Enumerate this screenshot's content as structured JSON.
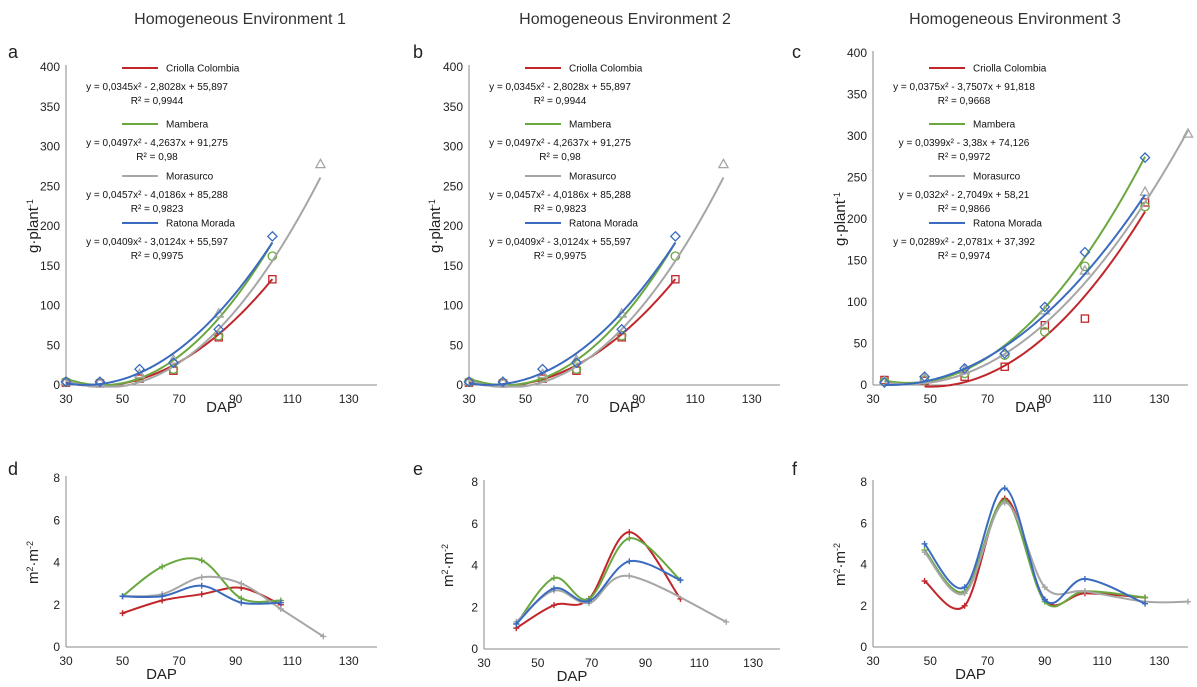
{
  "colors": {
    "Criolla Colombia": "#c0262a",
    "Mambera": "#6aa83f",
    "Morasurco": "#a6a6a6",
    "Ratona Morada": "#3a6bbf"
  },
  "chart_data": [
    {
      "id": "a",
      "type": "scatter",
      "letter": "a",
      "title": "Homogeneous Environment 1",
      "xlabel": "DAP",
      "ylabel": "g·plant",
      "ylabel_sup": "-1",
      "xlim": [
        30,
        140
      ],
      "ylim": [
        0,
        400
      ],
      "xticks": [
        "30",
        "50",
        "70",
        "90",
        "110",
        "130"
      ],
      "yticks": [
        "0",
        "50",
        "100",
        "150",
        "200",
        "250",
        "300",
        "350",
        "400"
      ],
      "series": [
        {
          "name": "Criolla Colombia",
          "marker": "square",
          "x": [
            30,
            42,
            56,
            68,
            84,
            103
          ],
          "y": [
            3,
            2,
            8,
            18,
            60,
            133
          ],
          "fit": [
            0.0345,
            -2.8028,
            55.897
          ],
          "fit_range": [
            30,
            103
          ],
          "equation": "y = 0,0345x² - 2,8028x + 55,897",
          "r2": "R² = 0,9944"
        },
        {
          "name": "Mambera",
          "marker": "circle",
          "x": [
            30,
            42,
            56,
            68,
            84,
            103
          ],
          "y": [
            4,
            3,
            10,
            20,
            62,
            162
          ],
          "fit": [
            0.0497,
            -4.2637,
            91.275
          ],
          "fit_range": [
            30,
            103
          ],
          "equation": "y = 0,0497x² - 4,2637x + 91,275",
          "r2": "R² = 0,98"
        },
        {
          "name": "Morasurco",
          "marker": "triangle",
          "x": [
            30,
            42,
            56,
            68,
            84,
            120
          ],
          "y": [
            5,
            4,
            14,
            32,
            90,
            278
          ],
          "fit": [
            0.0457,
            -4.0186,
            85.288
          ],
          "fit_range": [
            30,
            120
          ],
          "equation": "y = 0,0457x² - 4,0186x + 85,288",
          "r2": "R² = 0,9823"
        },
        {
          "name": "Ratona Morada",
          "marker": "diamond",
          "x": [
            30,
            42,
            56,
            68,
            84,
            103
          ],
          "y": [
            4,
            4,
            20,
            28,
            70,
            187
          ],
          "fit": [
            0.0409,
            -3.0124,
            55.597
          ],
          "fit_range": [
            30,
            103
          ],
          "equation": "y = 0,0409x² - 3,0124x + 55,597",
          "r2": "R² = 0,9975"
        }
      ]
    },
    {
      "id": "b",
      "type": "scatter",
      "letter": "b",
      "title": "Homogeneous Environment 2",
      "xlabel": "DAP",
      "ylabel": "g·plant",
      "ylabel_sup": "-1",
      "xlim": [
        30,
        140
      ],
      "ylim": [
        0,
        400
      ],
      "xticks": [
        "30",
        "50",
        "70",
        "90",
        "110",
        "130"
      ],
      "yticks": [
        "0",
        "50",
        "100",
        "150",
        "200",
        "250",
        "300",
        "350",
        "400"
      ],
      "series": [
        {
          "name": "Criolla Colombia",
          "marker": "square",
          "x": [
            30,
            42,
            56,
            68,
            84,
            103
          ],
          "y": [
            3,
            2,
            8,
            18,
            60,
            133
          ],
          "fit": [
            0.0345,
            -2.8028,
            55.897
          ],
          "fit_range": [
            30,
            103
          ],
          "equation": "y = 0,0345x² - 2,8028x + 55,897",
          "r2": "R² = 0,9944"
        },
        {
          "name": "Mambera",
          "marker": "circle",
          "x": [
            30,
            42,
            56,
            68,
            84,
            103
          ],
          "y": [
            4,
            3,
            10,
            20,
            62,
            162
          ],
          "fit": [
            0.0497,
            -4.2637,
            91.275
          ],
          "fit_range": [
            30,
            103
          ],
          "equation": "y = 0,0497x² - 4,2637x + 91,275",
          "r2": "R² = 0,98"
        },
        {
          "name": "Morasurco",
          "marker": "triangle",
          "x": [
            30,
            42,
            56,
            68,
            84,
            120
          ],
          "y": [
            5,
            4,
            14,
            32,
            90,
            278
          ],
          "fit": [
            0.0457,
            -4.0186,
            85.288
          ],
          "fit_range": [
            30,
            120
          ],
          "equation": "y = 0,0457x² - 4,0186x + 85,288",
          "r2": "R² = 0,9823"
        },
        {
          "name": "Ratona Morada",
          "marker": "diamond",
          "x": [
            30,
            42,
            56,
            68,
            84,
            103
          ],
          "y": [
            4,
            4,
            20,
            28,
            70,
            187
          ],
          "fit": [
            0.0409,
            -3.0124,
            55.597
          ],
          "fit_range": [
            30,
            103
          ],
          "equation": "y = 0,0409x² - 3,0124x + 55,597",
          "r2": "R² = 0,9975"
        }
      ]
    },
    {
      "id": "c",
      "type": "scatter",
      "letter": "c",
      "title": "Homogeneous Environment 3",
      "xlabel": "DAP",
      "ylabel": "g·plant",
      "ylabel_sup": "-1",
      "xlim": [
        30,
        140
      ],
      "ylim": [
        0,
        400
      ],
      "xticks": [
        "30",
        "50",
        "70",
        "90",
        "110",
        "130"
      ],
      "yticks": [
        "0",
        "50",
        "100",
        "150",
        "200",
        "250",
        "300",
        "350",
        "400"
      ],
      "series": [
        {
          "name": "Criolla Colombia",
          "marker": "square",
          "x": [
            34,
            48,
            62,
            76,
            90,
            104,
            125
          ],
          "y": [
            6,
            5,
            10,
            22,
            72,
            80,
            220
          ],
          "fit": [
            0.0375,
            -3.7507,
            91.818
          ],
          "fit_range": [
            48,
            125
          ],
          "equation": "y = 0,0375x² - 3,7507x + 91,818",
          "r2": "R² = 0,9668"
        },
        {
          "name": "Mambera",
          "marker": "circle",
          "x": [
            34,
            48,
            62,
            76,
            90,
            104,
            125
          ],
          "y": [
            4,
            6,
            14,
            36,
            64,
            143,
            215
          ],
          "fit": [
            0.0399,
            -3.38,
            74.126
          ],
          "fit_range": [
            34,
            125
          ],
          "equation": "y = 0,0399x² - 3,38x + 74,126",
          "r2": "R² = 0,9972"
        },
        {
          "name": "Morasurco",
          "marker": "triangle",
          "x": [
            34,
            48,
            62,
            76,
            90,
            104,
            125,
            140
          ],
          "y": [
            5,
            8,
            18,
            40,
            90,
            138,
            233,
            303
          ],
          "fit": [
            0.032,
            -2.7049,
            58.21
          ],
          "fit_range": [
            34,
            140
          ],
          "equation": "y = 0,032x² - 2,7049x + 58,21",
          "r2": "R² = 0,9866"
        },
        {
          "name": "Ratona Morada",
          "marker": "diamond",
          "x": [
            34,
            48,
            62,
            76,
            90,
            104,
            125
          ],
          "y": [
            3,
            10,
            20,
            38,
            94,
            160,
            274
          ],
          "fit": [
            0.0289,
            -2.0781,
            37.392
          ],
          "fit_range": [
            34,
            125
          ],
          "equation": "y = 0,0289x² - 2,0781x + 37,392",
          "r2": "R² = 0,9974"
        }
      ]
    },
    {
      "id": "d",
      "type": "line",
      "letter": "d",
      "xlabel": "DAP",
      "ylabel": "m",
      "ylabel_sup": "2",
      "ylabel_mid": "·m",
      "ylabel_sup2": "-2",
      "xlim": [
        30,
        140
      ],
      "ylim": [
        0,
        8
      ],
      "xticks": [
        "30",
        "50",
        "70",
        "90",
        "110",
        "130"
      ],
      "yticks": [
        "0",
        "2",
        "4",
        "6",
        "8"
      ],
      "series": [
        {
          "name": "Criolla Colombia",
          "x": [
            50,
            64,
            78,
            92,
            106
          ],
          "y": [
            1.6,
            2.2,
            2.5,
            2.8,
            2.0
          ]
        },
        {
          "name": "Mambera",
          "x": [
            50,
            64,
            78,
            92,
            106
          ],
          "y": [
            2.4,
            3.8,
            4.1,
            2.3,
            2.2
          ]
        },
        {
          "name": "Morasurco",
          "x": [
            50,
            64,
            78,
            92,
            106,
            121
          ],
          "y": [
            2.4,
            2.5,
            3.3,
            3.0,
            1.8,
            0.5
          ]
        },
        {
          "name": "Ratona Morada",
          "x": [
            50,
            64,
            78,
            92,
            106
          ],
          "y": [
            2.4,
            2.4,
            2.9,
            2.1,
            2.1
          ]
        }
      ]
    },
    {
      "id": "e",
      "type": "line",
      "letter": "e",
      "xlabel": "DAP",
      "ylabel": "m",
      "ylabel_sup": "2",
      "ylabel_mid": "·m",
      "ylabel_sup2": "-2",
      "xlim": [
        30,
        140
      ],
      "ylim": [
        0,
        8
      ],
      "xticks": [
        "30",
        "50",
        "70",
        "90",
        "110",
        "130"
      ],
      "yticks": [
        "0",
        "2",
        "4",
        "6",
        "8"
      ],
      "series": [
        {
          "name": "Criolla Colombia",
          "x": [
            42,
            56,
            69,
            84,
            103
          ],
          "y": [
            1.0,
            2.1,
            2.4,
            5.6,
            2.4
          ]
        },
        {
          "name": "Mambera",
          "x": [
            42,
            56,
            69,
            84,
            103
          ],
          "y": [
            1.2,
            3.4,
            2.4,
            5.3,
            3.3
          ]
        },
        {
          "name": "Morasurco",
          "x": [
            42,
            56,
            69,
            84,
            120
          ],
          "y": [
            1.3,
            2.8,
            2.2,
            3.5,
            1.3
          ]
        },
        {
          "name": "Ratona Morada",
          "x": [
            42,
            56,
            69,
            84,
            103
          ],
          "y": [
            1.2,
            2.9,
            2.3,
            4.2,
            3.3
          ]
        }
      ]
    },
    {
      "id": "f",
      "type": "line",
      "letter": "f",
      "xlabel": "DAP",
      "ylabel": "m",
      "ylabel_sup": "2",
      "ylabel_mid": "·m",
      "ylabel_sup2": "-2",
      "xlim": [
        30,
        140
      ],
      "ylim": [
        0,
        8
      ],
      "xticks": [
        "30",
        "50",
        "70",
        "90",
        "110",
        "130"
      ],
      "yticks": [
        "0",
        "2",
        "4",
        "6",
        "8"
      ],
      "series": [
        {
          "name": "Criolla Colombia",
          "x": [
            48,
            62,
            76,
            90,
            104,
            125
          ],
          "y": [
            3.2,
            2.0,
            7.2,
            2.3,
            2.6,
            2.4
          ]
        },
        {
          "name": "Mambera",
          "x": [
            48,
            62,
            76,
            90,
            104,
            125
          ],
          "y": [
            4.7,
            2.7,
            7.1,
            2.2,
            2.7,
            2.4
          ]
        },
        {
          "name": "Morasurco",
          "x": [
            48,
            62,
            76,
            90,
            104,
            125,
            140
          ],
          "y": [
            4.6,
            2.6,
            7.0,
            2.9,
            2.7,
            2.2,
            2.2
          ]
        },
        {
          "name": "Ratona Morada",
          "x": [
            48,
            62,
            76,
            90,
            104,
            125
          ],
          "y": [
            5.0,
            2.9,
            7.7,
            2.3,
            3.3,
            2.1
          ]
        }
      ]
    }
  ]
}
